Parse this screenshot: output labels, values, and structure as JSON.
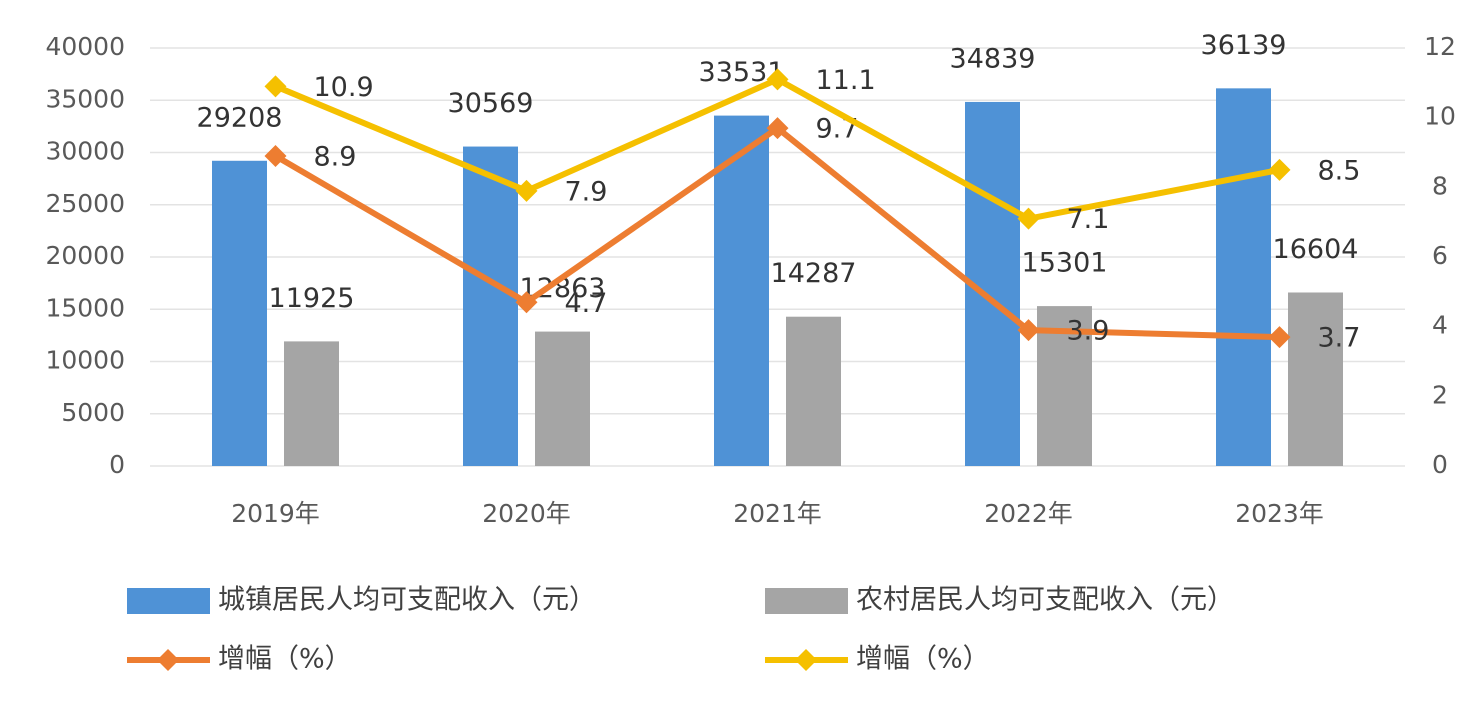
{
  "chart_data": {
    "type": "bar",
    "categories": [
      "2019年",
      "2020年",
      "2021年",
      "2022年",
      "2023年"
    ],
    "series": [
      {
        "name": "城镇居民人均可支配收入（元）",
        "type": "bar",
        "color": "#4f92d6",
        "values": [
          29208,
          30569,
          33531,
          34839,
          36139
        ]
      },
      {
        "name": "农村居民人均可支配收入（元）",
        "type": "bar",
        "color": "#a5a5a5",
        "values": [
          11925,
          12863,
          14287,
          15301,
          16604
        ]
      },
      {
        "name": "增幅（%）",
        "type": "line",
        "axis": "y2",
        "color": "#ed7d31",
        "values": [
          8.9,
          4.7,
          9.7,
          3.9,
          3.7
        ]
      },
      {
        "name": "增幅（%）",
        "type": "line",
        "axis": "y2",
        "color": "#f5c000",
        "values": [
          10.9,
          7.9,
          11.1,
          7.1,
          8.5
        ]
      }
    ],
    "ylim": [
      0,
      40000
    ],
    "yticks": [
      0,
      5000,
      10000,
      15000,
      20000,
      25000,
      30000,
      35000,
      40000
    ],
    "y2lim": [
      0,
      12
    ],
    "y2ticks": [
      0,
      2,
      4,
      6,
      8,
      10,
      12
    ],
    "grid": true
  }
}
